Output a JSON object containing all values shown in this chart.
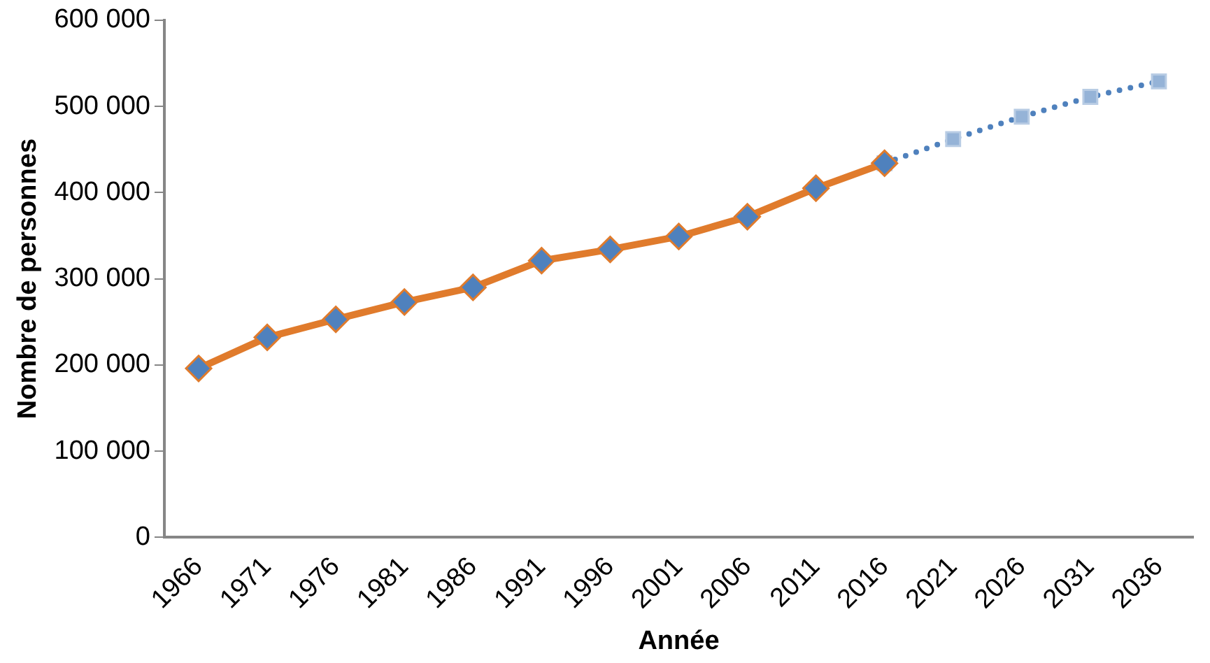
{
  "chart_data": {
    "type": "line",
    "xlabel": "Année",
    "ylabel": "Nombre de personnes",
    "categories": [
      "1966",
      "1971",
      "1976",
      "1981",
      "1986",
      "1991",
      "1996",
      "2001",
      "2006",
      "2011",
      "2016",
      "2021",
      "2026",
      "2031",
      "2036"
    ],
    "series": [
      {
        "color": "#e07b2c",
        "marker": "diamond",
        "line_style": "solid",
        "colors": [
          "#4f81bd",
          "#4f81bd",
          "#4f81bd",
          "#4f81bd",
          "#4f81bd",
          "#4f81bd",
          "#4f81bd",
          "#4f81bd",
          "#4f81bd",
          "#4f81bd",
          "#4f81bd",
          null,
          null,
          null,
          null
        ],
        "values": [
          196000,
          232000,
          253000,
          273000,
          290000,
          321000,
          334000,
          349000,
          372000,
          405000,
          434000,
          null,
          null,
          null,
          null
        ]
      },
      {
        "color": "#4f81bd",
        "marker": "square",
        "line_style": "dotted",
        "colors": [
          null,
          null,
          null,
          null,
          null,
          null,
          null,
          null,
          null,
          null,
          "#95b3d7",
          "#95b3d7",
          "#95b3d7",
          "#95b3d7",
          "#95b3d7"
        ],
        "values": [
          null,
          null,
          null,
          null,
          null,
          null,
          null,
          null,
          null,
          null,
          434000,
          462000,
          488000,
          511000,
          529000
        ]
      }
    ],
    "ylim": [
      0,
      600000
    ],
    "yticks": [
      {
        "value": 0,
        "label": "0"
      },
      {
        "value": 100000,
        "label": "100 000"
      },
      {
        "value": 200000,
        "label": "200 000"
      },
      {
        "value": 300000,
        "label": "300 000"
      },
      {
        "value": 400000,
        "label": "400 000"
      },
      {
        "value": 500000,
        "label": "500 000"
      },
      {
        "value": 600000,
        "label": "600 000"
      }
    ],
    "grid": false,
    "legend": false
  }
}
